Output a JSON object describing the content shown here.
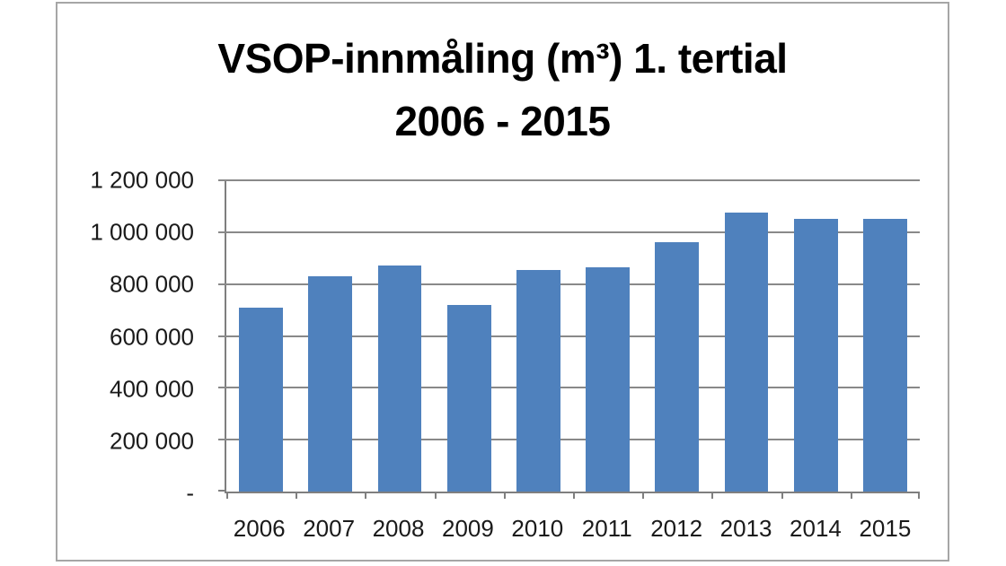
{
  "chart_data": {
    "type": "bar",
    "title": "VSOP-innmåling (m³) 1. tertial 2006 - 2015",
    "title_lines": [
      "VSOP-innmåling (m³) 1. tertial",
      "2006 - 2015"
    ],
    "categories": [
      "2006",
      "2007",
      "2008",
      "2009",
      "2010",
      "2011",
      "2012",
      "2013",
      "2014",
      "2015"
    ],
    "values": [
      710000,
      830000,
      870000,
      720000,
      855000,
      865000,
      960000,
      1075000,
      1050000,
      1050000
    ],
    "xlabel": "",
    "ylabel": "",
    "ylim": [
      0,
      1200000
    ],
    "y_ticks": [
      {
        "value": 1200000,
        "label": "1 200 000"
      },
      {
        "value": 1000000,
        "label": "1 000 000"
      },
      {
        "value": 800000,
        "label": "800 000"
      },
      {
        "value": 600000,
        "label": "600 000"
      },
      {
        "value": 400000,
        "label": "400 000"
      },
      {
        "value": 200000,
        "label": "200 000"
      },
      {
        "value": 0,
        "label": "-"
      }
    ],
    "grid": true,
    "legend": "none",
    "bar_width_ratio": 0.63,
    "colors": {
      "bar": "#4F81BD",
      "gridline": "#898989",
      "axis": "#7F7F7F",
      "frame_border": "#A6A6A6",
      "text": "#1A1A1A",
      "title_text": "#000000",
      "background": "#FFFFFF"
    }
  }
}
